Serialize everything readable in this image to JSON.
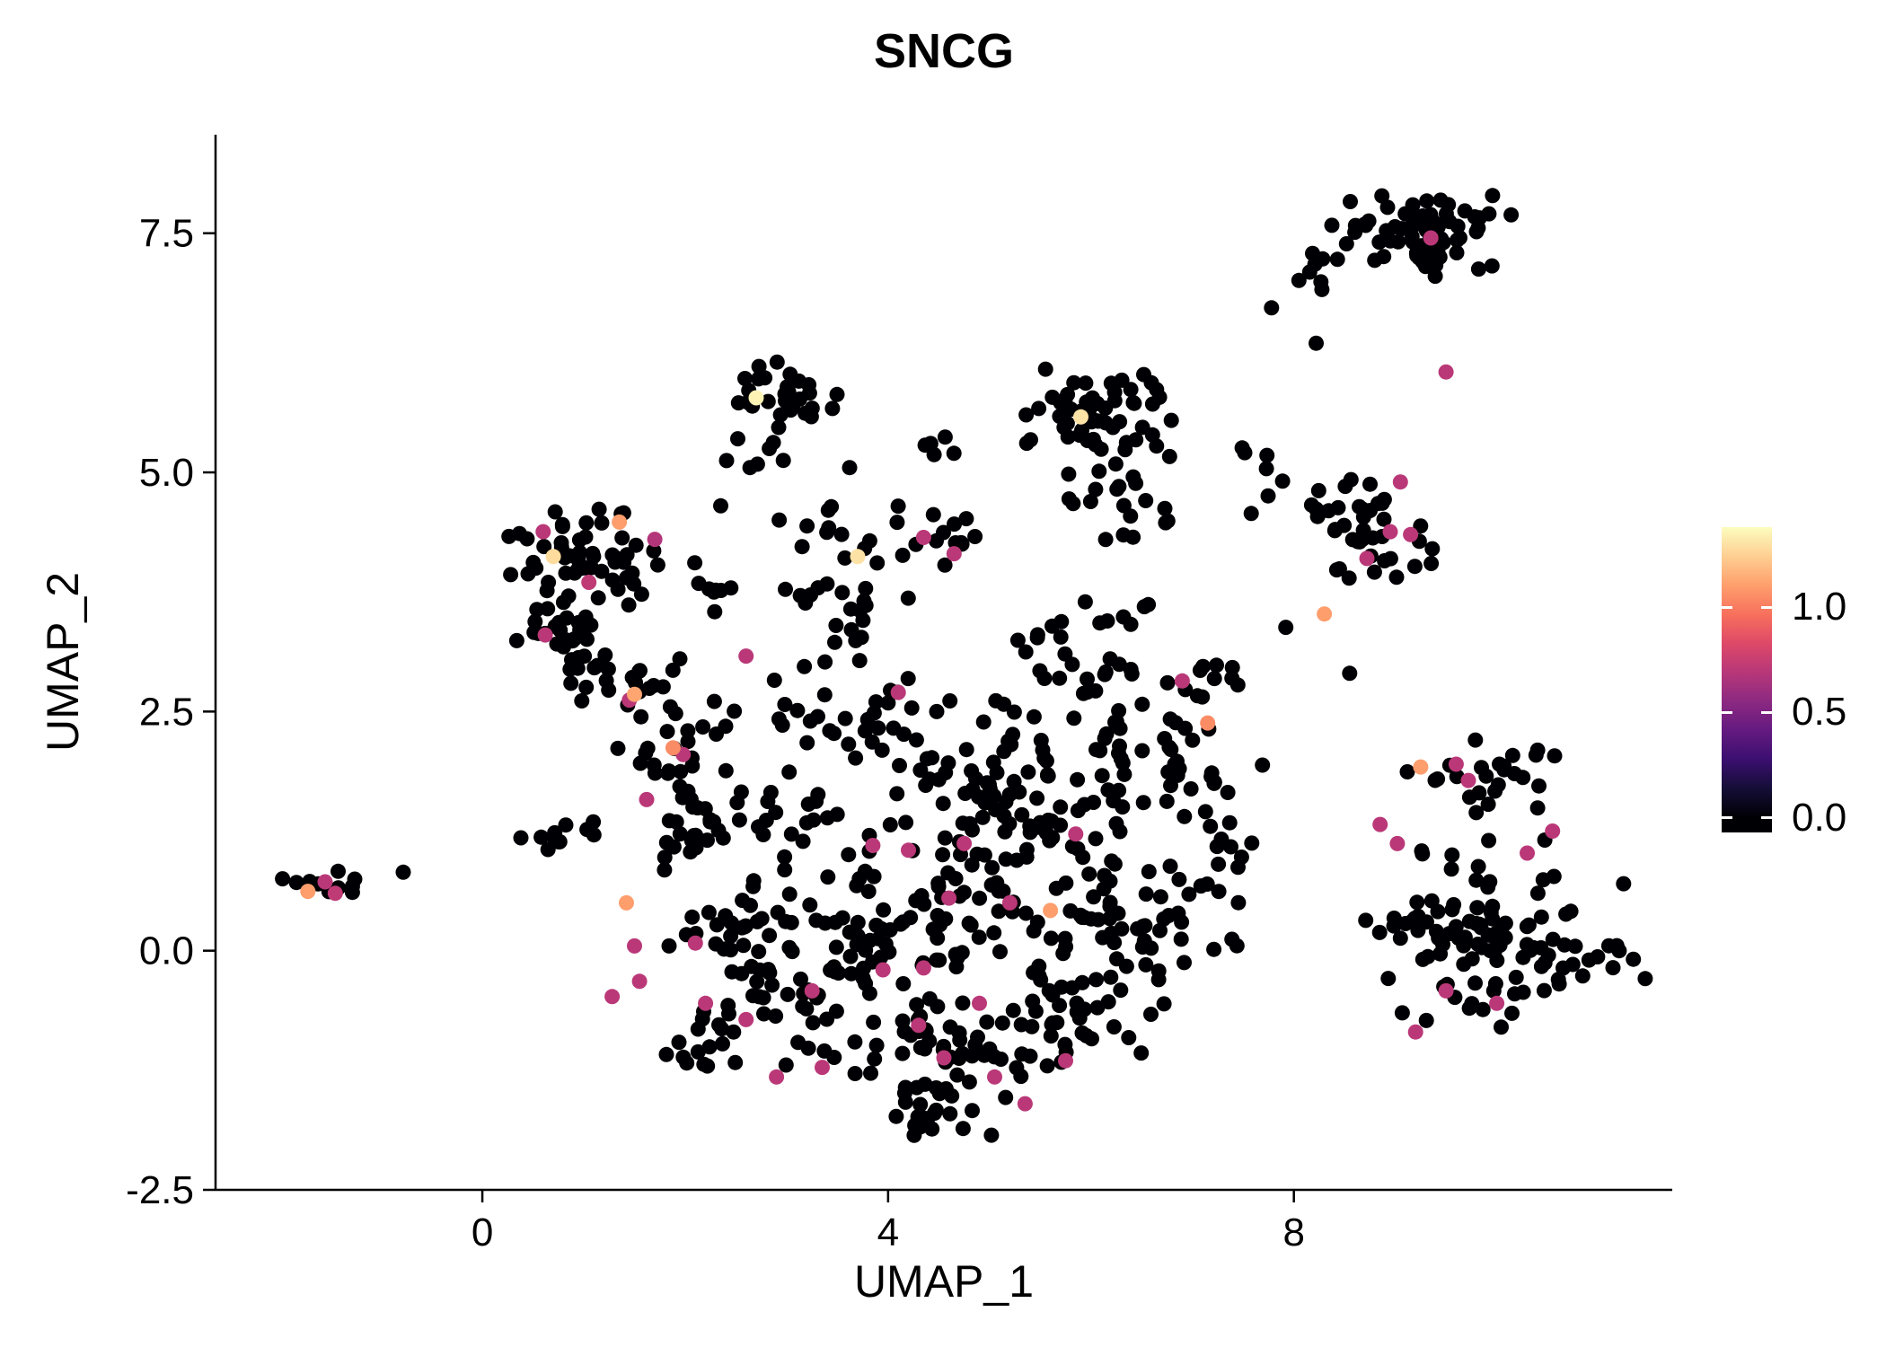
{
  "chart_data": {
    "type": "scatter",
    "title": "SNCG",
    "xlabel": "UMAP_1",
    "ylabel": "UMAP_2",
    "xlim": [
      -2.63,
      11.73
    ],
    "ylim": [
      -2.5,
      8.53
    ],
    "grid": false,
    "legend_position": "right",
    "background": "#ffffff",
    "axis_color": "#000000",
    "point_radius": 8.5,
    "seed": 42,
    "x_ticks": {
      "values": [
        0,
        4,
        8
      ],
      "labels": [
        "0",
        "4",
        "8"
      ]
    },
    "y_ticks": {
      "values": [
        -2.5,
        0.0,
        2.5,
        5.0,
        7.5
      ],
      "labels": [
        "-2.5",
        "0.0",
        "2.5",
        "5.0",
        "7.5"
      ]
    },
    "colormap": [
      [
        0.0,
        "#000004"
      ],
      [
        0.1,
        "#140e36"
      ],
      [
        0.2,
        "#3b0f70"
      ],
      [
        0.3,
        "#641a80"
      ],
      [
        0.4,
        "#8c2981"
      ],
      [
        0.5,
        "#b73779"
      ],
      [
        0.6,
        "#de4968"
      ],
      [
        0.7,
        "#f7705c"
      ],
      [
        0.8,
        "#fe9f6d"
      ],
      [
        0.9,
        "#fecf92"
      ],
      [
        1.0,
        "#fcfdbf"
      ]
    ],
    "colorbar": {
      "bar_min": -0.07,
      "bar_max": 1.38,
      "value_max": 1.38,
      "ticks": [
        0.0,
        0.5,
        1.0
      ],
      "tick_labels": [
        "0.0",
        "0.5",
        "1.0"
      ]
    },
    "black_clusters": [
      [
        -1.45,
        0.72,
        0.38,
        0.14,
        11
      ],
      [
        1.0,
        4.05,
        0.55,
        0.5,
        60
      ],
      [
        0.75,
        3.15,
        0.35,
        0.3,
        20
      ],
      [
        1.45,
        2.85,
        0.5,
        0.3,
        22
      ],
      [
        1.9,
        2.1,
        0.5,
        0.35,
        20
      ],
      [
        1.95,
        1.35,
        0.45,
        0.4,
        26
      ],
      [
        0.8,
        1.25,
        0.35,
        0.15,
        10
      ],
      [
        3.0,
        5.75,
        0.4,
        0.32,
        32
      ],
      [
        2.75,
        5.15,
        0.3,
        0.12,
        6
      ],
      [
        3.5,
        3.6,
        0.6,
        0.55,
        26
      ],
      [
        4.5,
        4.3,
        0.4,
        0.25,
        14
      ],
      [
        6.1,
        5.6,
        0.55,
        0.35,
        55
      ],
      [
        6.3,
        4.7,
        0.5,
        0.3,
        20
      ],
      [
        8.8,
        4.35,
        0.5,
        0.4,
        40
      ],
      [
        9.3,
        7.5,
        0.6,
        0.32,
        78
      ],
      [
        8.35,
        7.25,
        0.3,
        0.28,
        10
      ],
      [
        4.5,
        0.6,
        1.1,
        0.85,
        95
      ],
      [
        5.5,
        1.6,
        0.85,
        0.6,
        60
      ],
      [
        3.4,
        -0.4,
        0.85,
        0.6,
        55
      ],
      [
        4.8,
        -1.15,
        0.95,
        0.5,
        55
      ],
      [
        2.5,
        0.2,
        0.55,
        0.5,
        30
      ],
      [
        6.3,
        0.3,
        0.6,
        0.7,
        40
      ],
      [
        6.7,
        2.0,
        0.6,
        0.5,
        35
      ],
      [
        5.8,
        2.9,
        0.7,
        0.4,
        30
      ],
      [
        4.2,
        2.2,
        0.6,
        0.5,
        30
      ],
      [
        4.3,
        -1.7,
        0.75,
        0.25,
        20
      ],
      [
        7.35,
        1.3,
        0.35,
        0.55,
        15
      ],
      [
        7.0,
        2.85,
        0.3,
        0.25,
        10
      ],
      [
        9.8,
        0.2,
        0.8,
        0.75,
        95
      ],
      [
        9.9,
        1.8,
        0.6,
        0.3,
        25
      ],
      [
        10.9,
        -0.1,
        0.4,
        0.4,
        18
      ],
      [
        2.2,
        -1.0,
        0.4,
        0.4,
        14
      ],
      [
        3.0,
        1.3,
        0.45,
        0.5,
        22
      ],
      [
        5.9,
        -0.6,
        0.6,
        0.45,
        30
      ],
      [
        7.0,
        0.3,
        0.4,
        0.5,
        16
      ],
      [
        2.3,
        3.9,
        0.3,
        0.3,
        8
      ],
      [
        3.3,
        4.4,
        0.3,
        0.25,
        8
      ],
      [
        4.7,
        5.25,
        0.3,
        0.2,
        5
      ],
      [
        7.75,
        4.9,
        0.3,
        0.35,
        8
      ],
      [
        6.35,
        3.5,
        0.3,
        0.2,
        6
      ],
      [
        3.1,
        2.45,
        0.35,
        0.3,
        10
      ]
    ],
    "black_singles": [
      [
        -0.78,
        0.82
      ],
      [
        7.78,
        6.72
      ],
      [
        8.22,
        6.35
      ],
      [
        2.35,
        4.65
      ],
      [
        0.38,
        1.18
      ],
      [
        3.62,
        5.05
      ],
      [
        4.42,
        5.3
      ],
      [
        11.25,
        0.7
      ],
      [
        8.55,
        2.9
      ],
      [
        7.92,
        3.38
      ]
    ],
    "colored_points": [
      [
        -1.55,
        0.72,
        0.7
      ],
      [
        -1.45,
        0.6,
        0.72
      ],
      [
        0.6,
        4.38,
        0.7
      ],
      [
        1.05,
        3.85,
        0.72
      ],
      [
        1.7,
        4.3,
        0.68
      ],
      [
        0.62,
        3.3,
        0.7
      ],
      [
        1.45,
        2.62,
        0.7
      ],
      [
        2.6,
        3.08,
        0.7
      ],
      [
        1.98,
        2.05,
        0.7
      ],
      [
        1.62,
        1.58,
        0.7
      ],
      [
        1.5,
        0.05,
        0.7
      ],
      [
        1.28,
        -0.48,
        0.7
      ],
      [
        2.1,
        0.08,
        0.7
      ],
      [
        1.55,
        -0.32,
        0.7
      ],
      [
        2.2,
        -0.55,
        0.7
      ],
      [
        2.6,
        -0.72,
        0.7
      ],
      [
        3.25,
        -0.42,
        0.7
      ],
      [
        3.35,
        -1.22,
        0.7
      ],
      [
        2.9,
        -1.32,
        0.7
      ],
      [
        3.95,
        -0.2,
        0.7
      ],
      [
        4.3,
        -0.78,
        0.7
      ],
      [
        4.55,
        -1.12,
        0.7
      ],
      [
        5.05,
        -1.32,
        0.7
      ],
      [
        5.35,
        -1.6,
        0.7
      ],
      [
        5.75,
        -1.15,
        0.7
      ],
      [
        4.9,
        -0.55,
        0.7
      ],
      [
        4.35,
        -0.18,
        0.7
      ],
      [
        4.2,
        1.05,
        0.7
      ],
      [
        3.85,
        1.1,
        0.7
      ],
      [
        4.75,
        1.12,
        0.7
      ],
      [
        4.6,
        0.55,
        0.7
      ],
      [
        5.2,
        0.5,
        0.7
      ],
      [
        5.85,
        1.22,
        0.7
      ],
      [
        6.9,
        2.82,
        0.7
      ],
      [
        4.1,
        2.7,
        0.7
      ],
      [
        4.35,
        4.32,
        0.7
      ],
      [
        4.65,
        4.15,
        0.7
      ],
      [
        9.05,
        4.9,
        0.7
      ],
      [
        8.95,
        4.38,
        0.7
      ],
      [
        9.15,
        4.35,
        0.7
      ],
      [
        8.72,
        4.1,
        0.7
      ],
      [
        9.35,
        7.45,
        0.7
      ],
      [
        9.5,
        6.05,
        0.7
      ],
      [
        9.6,
        1.95,
        0.7
      ],
      [
        9.72,
        1.78,
        0.7
      ],
      [
        8.85,
        1.32,
        0.7
      ],
      [
        9.02,
        1.12,
        0.7
      ],
      [
        10.3,
        1.02,
        0.7
      ],
      [
        10.55,
        1.25,
        0.7
      ],
      [
        9.5,
        -0.42,
        0.7
      ],
      [
        9.2,
        -0.85,
        0.7
      ],
      [
        10.0,
        -0.55,
        0.7
      ],
      [
        -1.72,
        0.62,
        1.1
      ],
      [
        1.35,
        4.48,
        1.1
      ],
      [
        1.5,
        2.68,
        1.12
      ],
      [
        1.88,
        2.12,
        1.05
      ],
      [
        1.42,
        0.5,
        1.1
      ],
      [
        5.6,
        0.42,
        1.1
      ],
      [
        7.15,
        2.38,
        1.05
      ],
      [
        8.3,
        3.52,
        1.1
      ],
      [
        9.25,
        1.92,
        1.1
      ],
      [
        0.7,
        4.12,
        1.28
      ],
      [
        2.7,
        5.78,
        1.35
      ],
      [
        5.9,
        5.58,
        1.3
      ],
      [
        3.7,
        4.12,
        1.3
      ]
    ]
  }
}
